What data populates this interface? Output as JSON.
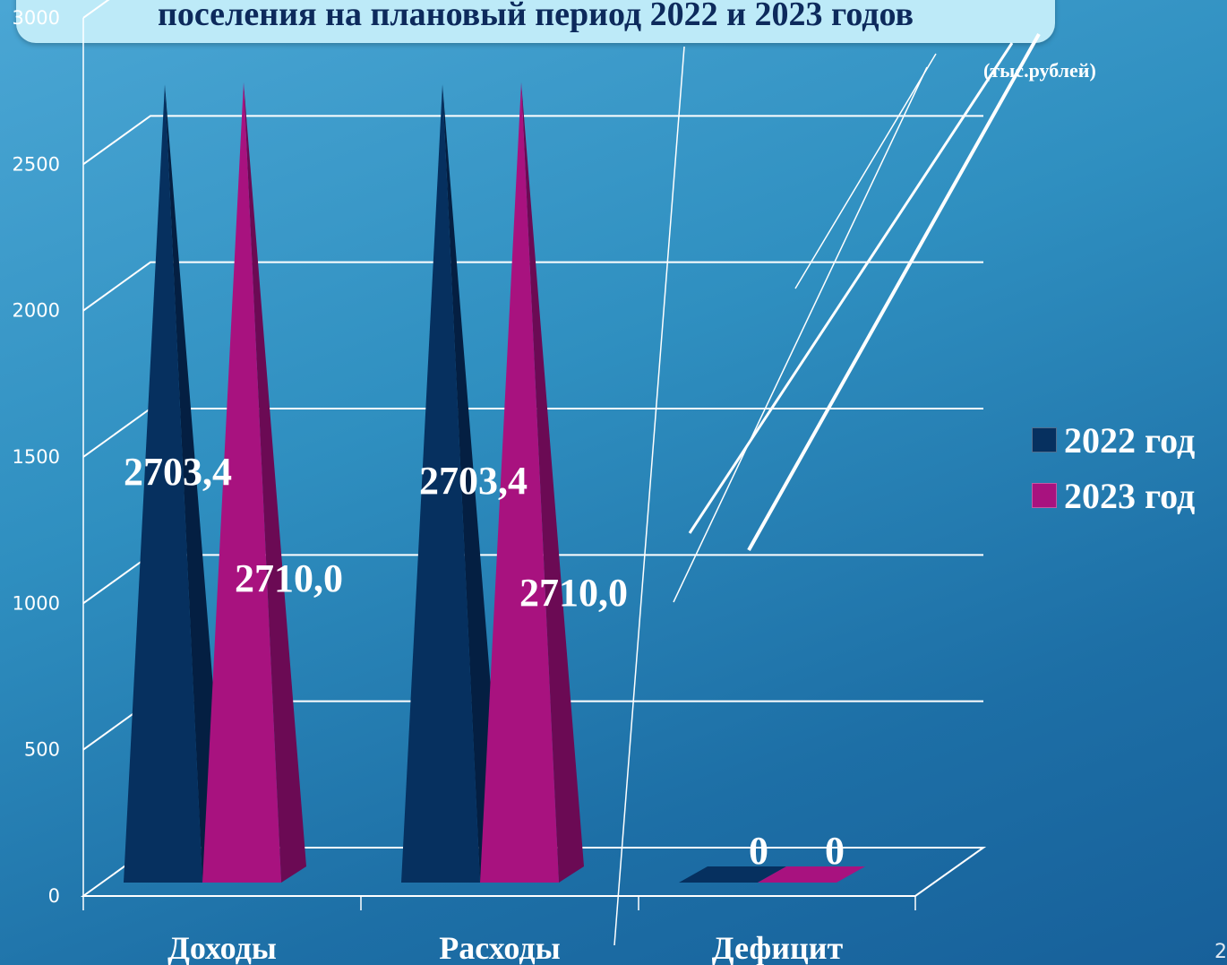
{
  "slide": {
    "title": "поселения на плановый период 2022 и 2023 годов",
    "page_number": "2"
  },
  "chart_data": {
    "type": "bar",
    "title": "поселения на плановый период 2022 и 2023 годов",
    "unit_label": "(тыс.рублей)",
    "categories": [
      "Доходы",
      "Расходы",
      "Дефицит"
    ],
    "series": [
      {
        "name": "2022 год",
        "values": [
          2703.4,
          2703.4,
          0
        ],
        "labels": [
          "2703,4",
          "2703,4",
          "0"
        ],
        "color": "#06305f"
      },
      {
        "name": "2023 год",
        "values": [
          2710.0,
          2710.0,
          0
        ],
        "labels": [
          "2710,0",
          "2710,0",
          "0"
        ],
        "color": "#a8127f"
      }
    ],
    "yticks": [
      "0",
      "500",
      "1000",
      "1500",
      "2000",
      "2500",
      "3000"
    ],
    "ylim": [
      0,
      3000
    ],
    "grid": true,
    "legend": "right"
  },
  "colors": {
    "series_2022_dark": "#041f42",
    "series_2023_dark": "#6b0a54",
    "grid": "#ffffff"
  }
}
